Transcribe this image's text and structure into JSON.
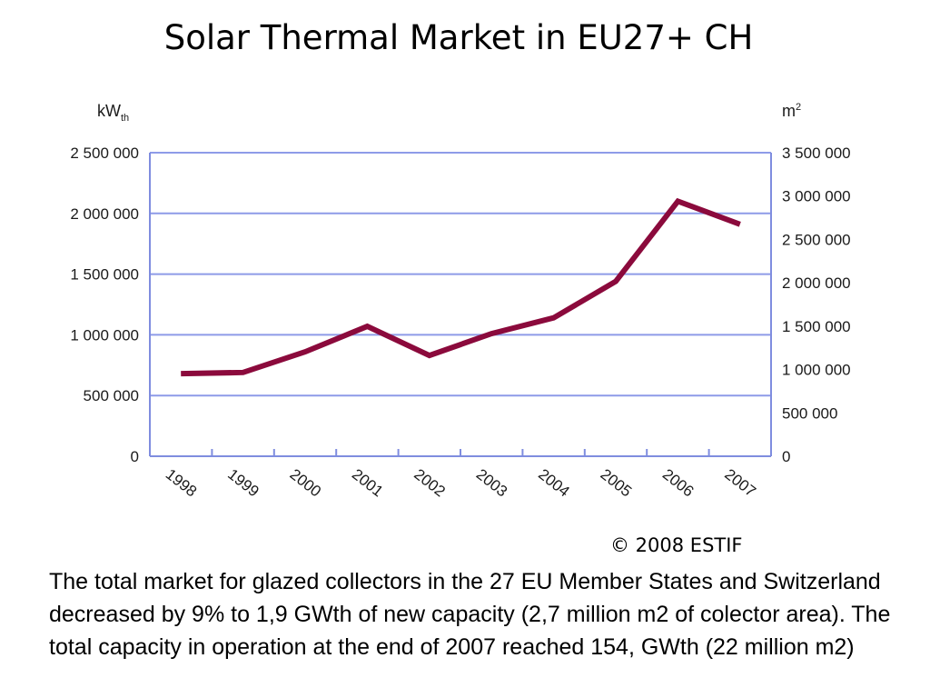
{
  "title": "Solar Thermal Market in EU27+ CH",
  "copyright": "© 2008 ESTIF",
  "caption": "The total market for glazed collectors in the 27 EU Member States and Switzerland decreased by 9% to 1,9 GWth of new capacity (2,7 million m2 of colector area). The total capacity in operation at the end of 2007 reached 154, GWth (22 million m2)",
  "colors": {
    "line": "#8b0a3c",
    "grid": "#8e9be8",
    "axis": "#7f8ddf"
  },
  "chart_data": {
    "type": "line",
    "title": "Solar Thermal Market in EU27+ CH",
    "ylabel_left_main": "kW",
    "ylabel_left_sub": "th",
    "ylabel_right_main": "m",
    "ylabel_right_sup": "2",
    "categories": [
      "1998",
      "1999",
      "2000",
      "2001",
      "2002",
      "2003",
      "2004",
      "2005",
      "2006",
      "2007"
    ],
    "series": [
      {
        "values": [
          680000,
          690000,
          860000,
          1070000,
          830000,
          1010000,
          1140000,
          1440000,
          2100000,
          1910000
        ]
      }
    ],
    "ylim_left": [
      0,
      2500000
    ],
    "ylim_right": [
      0,
      3500000
    ],
    "yticks_left": [
      "0",
      "500 000",
      "1 000 000",
      "1 500 000",
      "2 000 000",
      "2 500 000"
    ],
    "yticks_right": [
      "0",
      "500 000",
      "1 000 000",
      "1 500 000",
      "2 000 000",
      "2 500 000",
      "3 000 000",
      "3 500 000"
    ],
    "grid": true,
    "legend": "none"
  }
}
